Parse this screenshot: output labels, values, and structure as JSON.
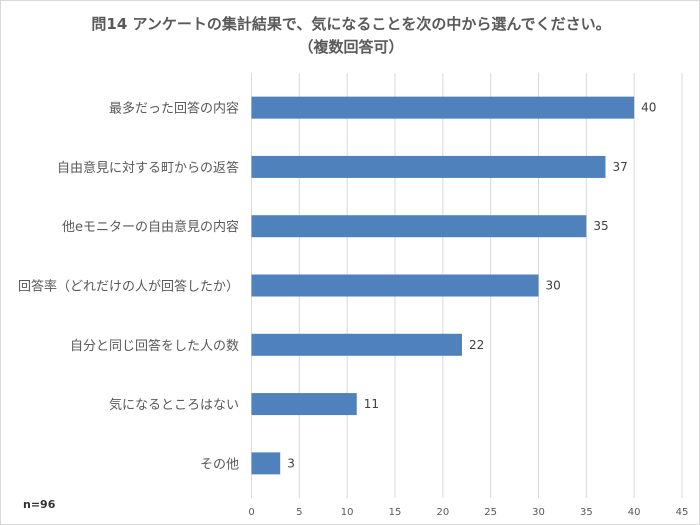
{
  "chart_data": {
    "type": "bar",
    "orientation": "horizontal",
    "title": "問14 アンケートの集計結果で、気になることを次の中から選んでください。",
    "subtitle": "（複数回答可）",
    "categories": [
      "最多だった回答の内容",
      "自由意見に対する町からの返答",
      "他eモニターの自由意見の内容",
      "回答率（どれだけの人が回答したか）",
      "自分と同じ回答をした人の数",
      "気になるところはない",
      "その他"
    ],
    "values": [
      40,
      37,
      35,
      30,
      22,
      11,
      3
    ],
    "xlim": [
      0,
      45
    ],
    "xticks": [
      0,
      5,
      10,
      15,
      20,
      25,
      30,
      35,
      40,
      45
    ],
    "grid": true,
    "bar_color": "#4f81bd",
    "note": "n=96"
  }
}
